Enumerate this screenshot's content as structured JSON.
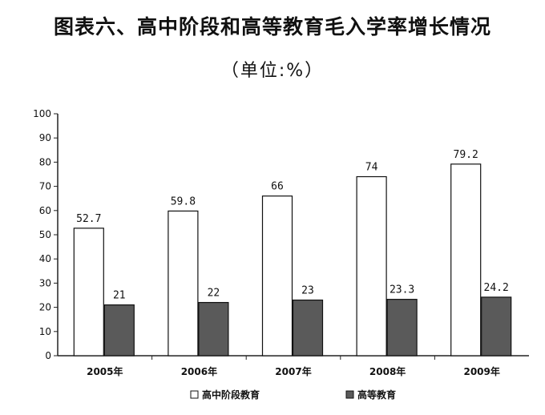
{
  "chart_data": {
    "type": "bar",
    "title": "图表六、高中阶段和高等教育毛入学率增长情况",
    "subtitle": "（单位:%）",
    "categories": [
      "2005年",
      "2006年",
      "2007年",
      "2008年",
      "2009年"
    ],
    "series": [
      {
        "name": "高中阶段教育",
        "values": [
          52.7,
          59.8,
          66,
          74,
          79.2
        ],
        "value_labels": [
          "52.7",
          "59.8",
          "66",
          "74",
          "79.2"
        ],
        "color": "#ffffff"
      },
      {
        "name": "高等教育",
        "values": [
          21,
          22,
          23,
          23.3,
          24.2
        ],
        "value_labels": [
          "21",
          "22",
          "23",
          "23.3",
          "24.2"
        ],
        "color": "#5a5a5a"
      }
    ],
    "ylim": [
      0,
      100
    ],
    "yticks": [
      0,
      10,
      20,
      30,
      40,
      50,
      60,
      70,
      80,
      90,
      100
    ],
    "xlabel": "",
    "ylabel": "",
    "grid": false,
    "legend": "bottom"
  }
}
